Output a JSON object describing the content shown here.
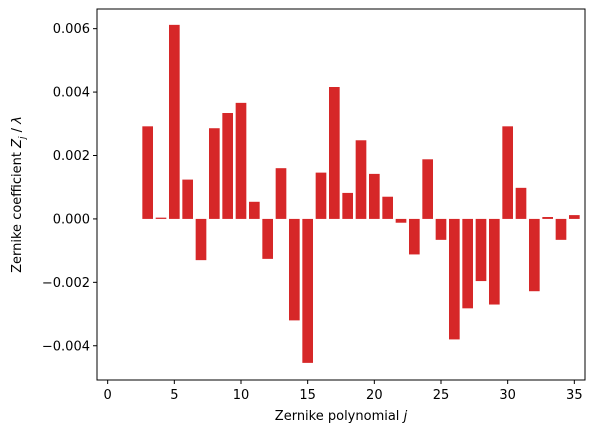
{
  "chart_data": {
    "type": "bar",
    "xlabel": "Zernike polynomial j",
    "ylabel": "Zernike coefficient Z_j / λ",
    "x": [
      3,
      4,
      5,
      6,
      7,
      8,
      9,
      10,
      11,
      12,
      13,
      14,
      15,
      16,
      17,
      18,
      19,
      20,
      21,
      22,
      23,
      24,
      25,
      26,
      27,
      28,
      29,
      30,
      31,
      32,
      33,
      34,
      35
    ],
    "values": [
      0.00292,
      4e-05,
      0.00612,
      0.00124,
      -0.0013,
      0.00286,
      0.00334,
      0.00366,
      0.00054,
      -0.00126,
      0.0016,
      -0.0032,
      -0.00454,
      0.00146,
      0.00416,
      0.00082,
      0.00248,
      0.00142,
      0.0007,
      -0.00012,
      -0.00112,
      0.00188,
      -0.00066,
      -0.0038,
      -0.00282,
      -0.00196,
      -0.0027,
      0.00292,
      0.00098,
      -0.00228,
      6e-05,
      -0.00066,
      0.00012
    ],
    "xlim": [
      -0.8,
      35.8
    ],
    "ylim": [
      -0.00508,
      0.00662
    ],
    "xticks": [
      0,
      5,
      10,
      15,
      20,
      25,
      30,
      35
    ],
    "yticks": [
      -0.004,
      -0.002,
      0.0,
      0.002,
      0.004,
      0.006
    ],
    "ytick_labels": [
      "−0.004",
      "−0.002",
      "0.000",
      "0.002",
      "0.004",
      "0.006"
    ],
    "bar_color": "#d62728",
    "grid": false,
    "legend": "none"
  }
}
